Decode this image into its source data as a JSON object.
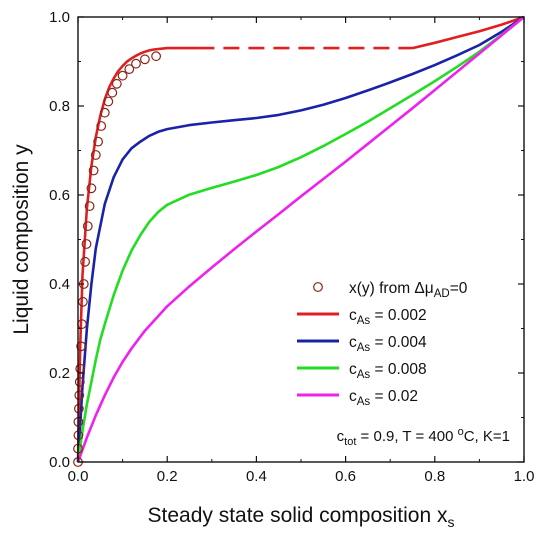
{
  "chart_data": {
    "type": "line",
    "xlabel": {
      "text": "Steady state solid composition x",
      "sub": "s"
    },
    "ylabel": "Liquid composition y",
    "xlim": [
      0.0,
      1.0
    ],
    "ylim": [
      0.0,
      1.0
    ],
    "xticks": [
      "0.0",
      "0.2",
      "0.4",
      "0.6",
      "0.8",
      "1.0"
    ],
    "yticks": [
      "0.0",
      "0.2",
      "0.4",
      "0.6",
      "0.8",
      "1.0"
    ],
    "grid": false,
    "legend_position": "lower-right",
    "series": [
      {
        "name": "c_As = 0.002",
        "color": "#e02020",
        "segments": [
          {
            "style": "solid",
            "x": [
              0.0,
              0.002,
              0.005,
              0.01,
              0.02,
              0.03,
              0.04,
              0.05,
              0.06,
              0.07,
              0.08,
              0.09,
              0.1,
              0.11,
              0.12,
              0.13,
              0.14,
              0.15,
              0.16,
              0.17,
              0.18,
              0.19,
              0.2,
              0.22,
              0.25,
              0.27
            ],
            "y": [
              0.0,
              0.12,
              0.26,
              0.42,
              0.57,
              0.665,
              0.73,
              0.778,
              0.815,
              0.842,
              0.862,
              0.878,
              0.89,
              0.9,
              0.907,
              0.913,
              0.918,
              0.922,
              0.925,
              0.927,
              0.928,
              0.929,
              0.93,
              0.93,
              0.93,
              0.93
            ]
          },
          {
            "style": "dashed",
            "x": [
              0.27,
              0.75
            ],
            "y": [
              0.93,
              0.93
            ]
          },
          {
            "style": "solid",
            "x": [
              0.75,
              0.8,
              0.85,
              0.9,
              0.95,
              1.0
            ],
            "y": [
              0.93,
              0.942,
              0.955,
              0.968,
              0.983,
              1.0
            ]
          }
        ]
      },
      {
        "name": "c_As = 0.004",
        "color": "#1a23a8",
        "segments": [
          {
            "style": "solid",
            "x": [
              0.0,
              0.01,
              0.02,
              0.03,
              0.04,
              0.06,
              0.08,
              0.1,
              0.12,
              0.14,
              0.16,
              0.18,
              0.2,
              0.25,
              0.3,
              0.35,
              0.4,
              0.45,
              0.5,
              0.55,
              0.6,
              0.65,
              0.7,
              0.75,
              0.8,
              0.85,
              0.9,
              0.95,
              1.0
            ],
            "y": [
              0.0,
              0.17,
              0.3,
              0.4,
              0.48,
              0.58,
              0.64,
              0.68,
              0.705,
              0.72,
              0.733,
              0.742,
              0.748,
              0.757,
              0.763,
              0.768,
              0.773,
              0.78,
              0.79,
              0.803,
              0.818,
              0.835,
              0.853,
              0.872,
              0.892,
              0.914,
              0.937,
              0.967,
              1.0
            ]
          }
        ]
      },
      {
        "name": "c_As = 0.008",
        "color": "#22dd22",
        "segments": [
          {
            "style": "solid",
            "x": [
              0.0,
              0.01,
              0.02,
              0.03,
              0.04,
              0.05,
              0.06,
              0.08,
              0.1,
              0.12,
              0.14,
              0.16,
              0.18,
              0.2,
              0.25,
              0.3,
              0.35,
              0.4,
              0.45,
              0.5,
              0.55,
              0.6,
              0.65,
              0.7,
              0.75,
              0.8,
              0.85,
              0.9,
              0.95,
              1.0
            ],
            "y": [
              0.0,
              0.07,
              0.13,
              0.18,
              0.23,
              0.275,
              0.31,
              0.375,
              0.43,
              0.475,
              0.51,
              0.54,
              0.562,
              0.578,
              0.601,
              0.616,
              0.63,
              0.645,
              0.663,
              0.685,
              0.71,
              0.737,
              0.765,
              0.795,
              0.825,
              0.856,
              0.888,
              0.922,
              0.96,
              1.0
            ]
          }
        ]
      },
      {
        "name": "c_As = 0.02",
        "color": "#ee22ee",
        "segments": [
          {
            "style": "solid",
            "x": [
              0.0,
              0.02,
              0.04,
              0.06,
              0.08,
              0.1,
              0.12,
              0.15,
              0.2,
              0.25,
              0.3,
              0.35,
              0.4,
              0.45,
              0.5,
              0.55,
              0.6,
              0.65,
              0.7,
              0.75,
              0.8,
              0.85,
              0.9,
              0.95,
              1.0
            ],
            "y": [
              0.0,
              0.055,
              0.105,
              0.15,
              0.19,
              0.225,
              0.255,
              0.295,
              0.35,
              0.395,
              0.437,
              0.478,
              0.518,
              0.557,
              0.597,
              0.636,
              0.675,
              0.715,
              0.755,
              0.795,
              0.836,
              0.877,
              0.918,
              0.959,
              1.0
            ]
          }
        ]
      }
    ],
    "scatter": {
      "name": "x(y) from Δμ_AD=0",
      "color": "#8a2418",
      "x": [
        0.0,
        0.0,
        0.001,
        0.001,
        0.002,
        0.003,
        0.004,
        0.005,
        0.007,
        0.009,
        0.011,
        0.013,
        0.016,
        0.019,
        0.022,
        0.026,
        0.03,
        0.035,
        0.04,
        0.045,
        0.052,
        0.06,
        0.068,
        0.077,
        0.087,
        0.1,
        0.115,
        0.13,
        0.15,
        0.175
      ],
      "y": [
        0.0,
        0.03,
        0.06,
        0.09,
        0.12,
        0.15,
        0.18,
        0.21,
        0.26,
        0.31,
        0.36,
        0.4,
        0.45,
        0.49,
        0.53,
        0.575,
        0.615,
        0.655,
        0.69,
        0.72,
        0.755,
        0.785,
        0.81,
        0.83,
        0.85,
        0.868,
        0.883,
        0.895,
        0.905,
        0.912
      ]
    },
    "legend": [
      {
        "kind": "marker",
        "color": "#8a2418",
        "pre": "x(y) from Δμ",
        "sub": "AD",
        "post": "=0"
      },
      {
        "kind": "line",
        "color": "#e02020",
        "pre": "c",
        "sub": "As",
        "post": " = 0.002"
      },
      {
        "kind": "line",
        "color": "#1a23a8",
        "pre": "c",
        "sub": "As",
        "post": " = 0.004"
      },
      {
        "kind": "line",
        "color": "#22dd22",
        "pre": "c",
        "sub": "As",
        "post": " = 0.008"
      },
      {
        "kind": "line",
        "color": "#ee22ee",
        "pre": "c",
        "sub": "As",
        "post": " = 0.02"
      }
    ],
    "annotation": {
      "p1": "c",
      "s1": "tot",
      "p2": " = 0.9, T = 400 ",
      "sup": "o",
      "p3": "C, K=1"
    }
  }
}
